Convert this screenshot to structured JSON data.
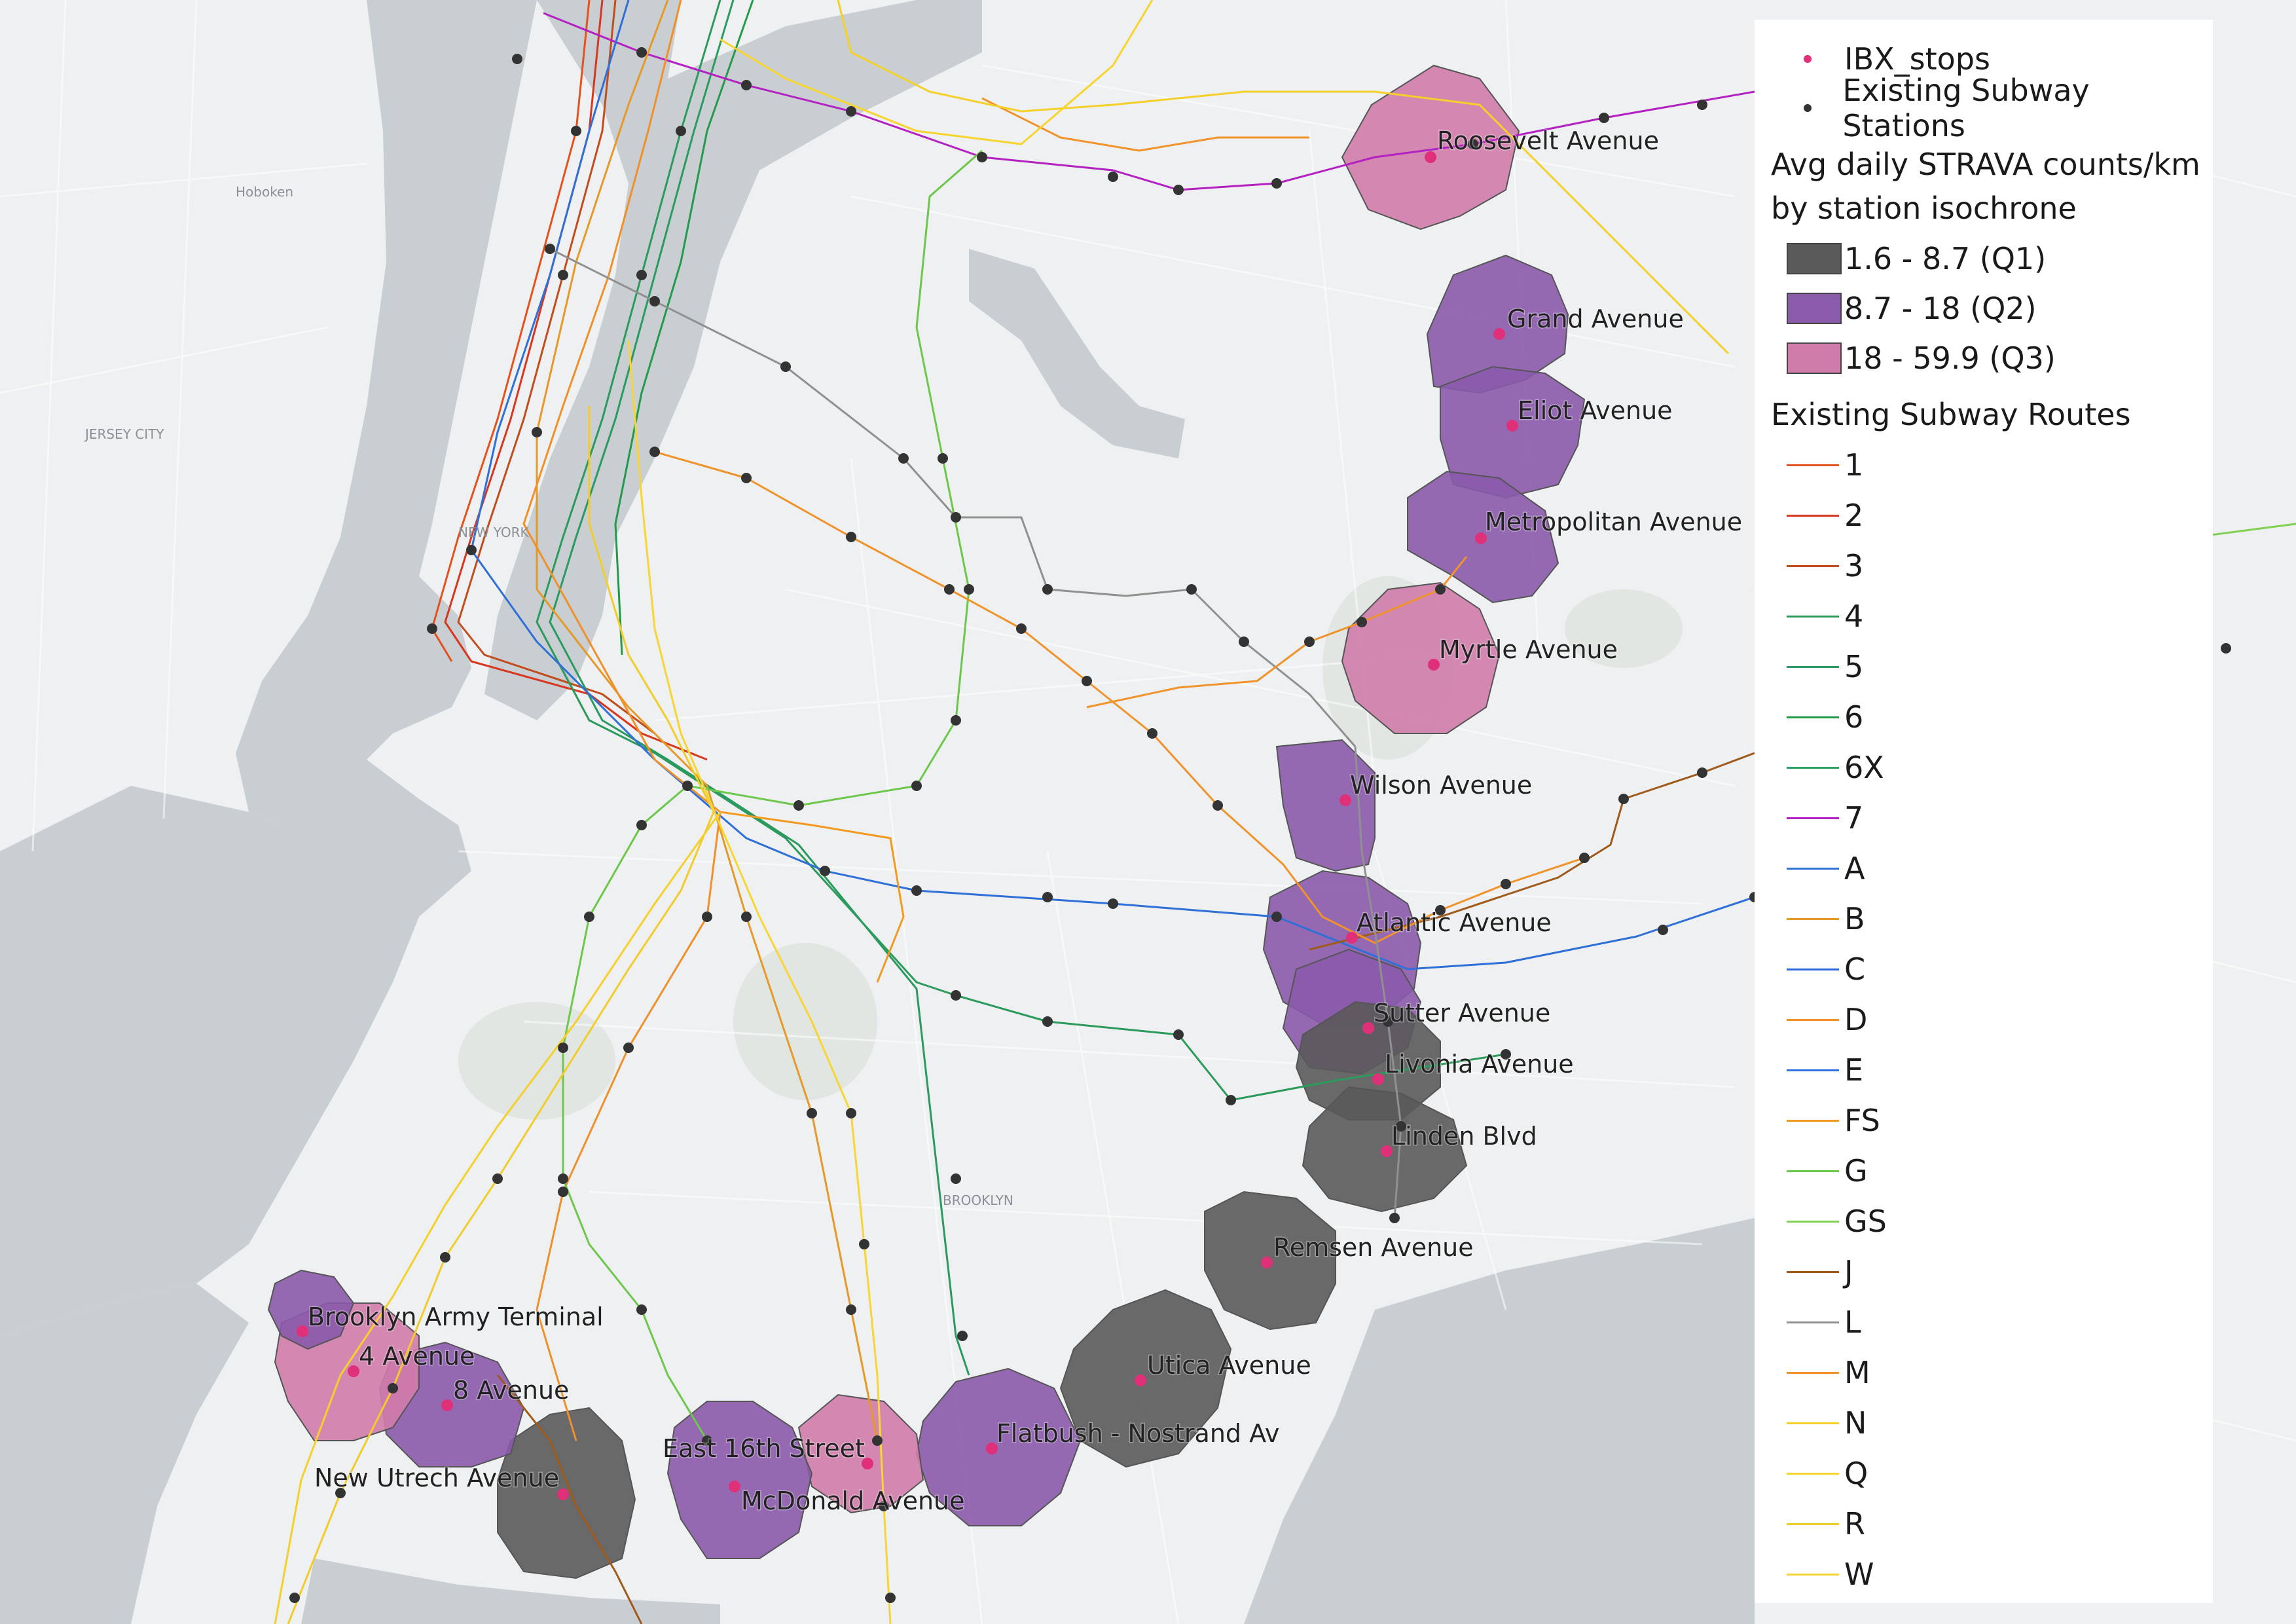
{
  "basemap": {
    "place_labels": [
      "JERSEY CITY",
      "Hoboken",
      "NEW YORK",
      "BROOKLYN"
    ]
  },
  "legend": {
    "ibx_stops": {
      "label": "IBX_stops",
      "color": "#e0307a"
    },
    "subway_stations": {
      "label": "Existing Subway Stations",
      "color": "#333333"
    },
    "isochrone_title_line1": "Avg daily STRAVA counts/km",
    "isochrone_title_line2": "by station isochrone",
    "classes": [
      {
        "label": "1.6 - 8.7 (Q1)",
        "color": "#5a5a5a"
      },
      {
        "label": "8.7 - 18 (Q2)",
        "color": "#8a5aab"
      },
      {
        "label": "18 - 59.9 (Q3)",
        "color": "#d07caa"
      }
    ],
    "routes_title": "Existing Subway Routes",
    "routes": [
      {
        "label": "1",
        "color": "#e4511c"
      },
      {
        "label": "2",
        "color": "#d8361e"
      },
      {
        "label": "3",
        "color": "#c14d1e"
      },
      {
        "label": "4",
        "color": "#2c9a5a"
      },
      {
        "label": "5",
        "color": "#2a9a60"
      },
      {
        "label": "6",
        "color": "#229a4a"
      },
      {
        "label": "6X",
        "color": "#2ea064"
      },
      {
        "label": "7",
        "color": "#b421c2"
      },
      {
        "label": "A",
        "color": "#2f6fd8"
      },
      {
        "label": "B",
        "color": "#e59a28"
      },
      {
        "label": "C",
        "color": "#2864df"
      },
      {
        "label": "D",
        "color": "#f0902a"
      },
      {
        "label": "E",
        "color": "#2f70e0"
      },
      {
        "label": "FS",
        "color": "#f29a20"
      },
      {
        "label": "G",
        "color": "#6cc74a"
      },
      {
        "label": "GS",
        "color": "#7fd050"
      },
      {
        "label": "J",
        "color": "#a05a1a"
      },
      {
        "label": "L",
        "color": "#909090"
      },
      {
        "label": "M",
        "color": "#f0932a"
      },
      {
        "label": "N",
        "color": "#f5d02a"
      },
      {
        "label": "Q",
        "color": "#f7d42e"
      },
      {
        "label": "R",
        "color": "#f2cc2a"
      },
      {
        "label": "W",
        "color": "#f6d634"
      }
    ]
  },
  "stations": [
    {
      "name": "Roosevelt Avenue",
      "class": 2
    },
    {
      "name": "Grand Avenue",
      "class": 1
    },
    {
      "name": "Eliot Avenue",
      "class": 1
    },
    {
      "name": "Metropolitan Avenue",
      "class": 1
    },
    {
      "name": "Myrtle Avenue",
      "class": 2
    },
    {
      "name": "Wilson Avenue",
      "class": 1
    },
    {
      "name": "Atlantic Avenue",
      "class": 1
    },
    {
      "name": "Sutter Avenue",
      "class": 1
    },
    {
      "name": "Livonia Avenue",
      "class": 0
    },
    {
      "name": "Linden Blvd",
      "class": 0
    },
    {
      "name": "Remsen Avenue",
      "class": 0
    },
    {
      "name": "Utica Avenue",
      "class": 0
    },
    {
      "name": "Flatbush - Nostrand Av",
      "class": 1
    },
    {
      "name": "McDonald Avenue",
      "class": 2
    },
    {
      "name": "East 16th Street",
      "class": 1
    },
    {
      "name": "New Utrech Avenue",
      "class": 0
    },
    {
      "name": "8 Avenue",
      "class": 1
    },
    {
      "name": "4 Avenue",
      "class": 2
    },
    {
      "name": "Brooklyn Army Terminal",
      "class": 1
    }
  ]
}
